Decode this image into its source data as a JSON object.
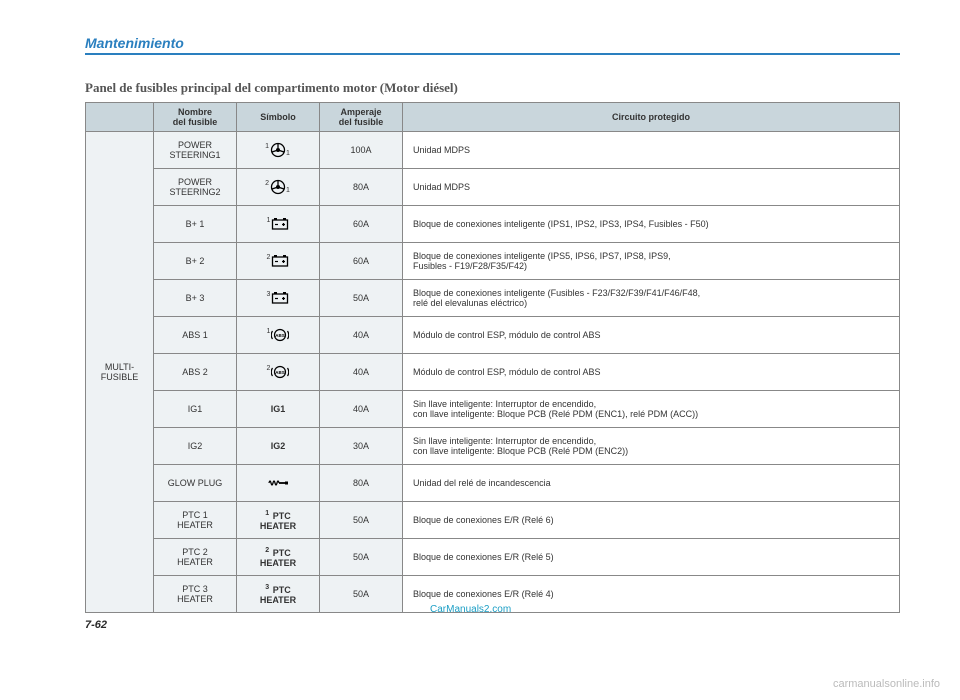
{
  "header": {
    "section": "Mantenimiento"
  },
  "title": "Panel de fusibles principal del compartimento motor (Motor diésel)",
  "table": {
    "headers": {
      "group": "",
      "name": "Nombre\ndel fusible",
      "symbol": "Símbolo",
      "amp": "Amperaje\ndel fusible",
      "desc": "Circuito protegido"
    },
    "group_label": "MULTI-\nFUSIBLE",
    "rows": [
      {
        "name": "POWER\nSTEERING1",
        "sym_type": "steer",
        "sup": "1",
        "sub": "1",
        "amp": "100A",
        "desc": "Unidad MDPS"
      },
      {
        "name": "POWER\nSTEERING2",
        "sym_type": "steer",
        "sup": "2",
        "sub": "1",
        "amp": "80A",
        "desc": "Unidad MDPS"
      },
      {
        "name": "B+ 1",
        "sym_type": "battery",
        "sup": "1",
        "amp": "60A",
        "desc": "Bloque de conexiones inteligente (IPS1, IPS2, IPS3, IPS4, Fusibles - F50)"
      },
      {
        "name": "B+ 2",
        "sym_type": "battery",
        "sup": "2",
        "amp": "60A",
        "desc": "Bloque de conexiones inteligente (IPS5, IPS6, IPS7, IPS8, IPS9,\nFusibles - F19/F28/F35/F42)"
      },
      {
        "name": "B+ 3",
        "sym_type": "battery",
        "sup": "3",
        "amp": "50A",
        "desc": "Bloque de conexiones inteligente (Fusibles - F23/F32/F39/F41/F46/F48,\nrelé del elevalunas eléctrico)"
      },
      {
        "name": "ABS 1",
        "sym_type": "abs",
        "sup": "1",
        "amp": "40A",
        "desc": "Módulo de control ESP, módulo de control ABS"
      },
      {
        "name": "ABS 2",
        "sym_type": "abs",
        "sup": "2",
        "amp": "40A",
        "desc": "Módulo de control ESP, módulo de control ABS"
      },
      {
        "name": "IG1",
        "sym_type": "text",
        "text": "IG1",
        "amp": "40A",
        "desc": "Sin llave inteligente: Interruptor de encendido,\ncon llave inteligente: Bloque PCB (Relé PDM (ENC1), relé PDM (ACC))"
      },
      {
        "name": "IG2",
        "sym_type": "text",
        "text": "IG2",
        "amp": "30A",
        "desc": "Sin llave inteligente: Interruptor de encendido,\ncon llave inteligente: Bloque PCB (Relé PDM (ENC2))"
      },
      {
        "name": "GLOW PLUG",
        "sym_type": "glow",
        "amp": "80A",
        "desc": "Unidad del relé de incandescencia"
      },
      {
        "name": "PTC 1\nHEATER",
        "sym_type": "ptc",
        "sup": "1",
        "amp": "50A",
        "desc": "Bloque de conexiones E/R (Relé 6)"
      },
      {
        "name": "PTC 2\nHEATER",
        "sym_type": "ptc",
        "sup": "2",
        "amp": "50A",
        "desc": "Bloque de conexiones E/R (Relé 5)"
      },
      {
        "name": "PTC 3\nHEATER",
        "sym_type": "ptc",
        "sup": "3",
        "amp": "50A",
        "desc": "Bloque de conexiones E/R (Relé 4)"
      }
    ]
  },
  "page_number": "7-62",
  "watermark": "CarManuals2.com",
  "footer": "carmanualsonline.info",
  "colors": {
    "accent": "#2a7fbf",
    "header_bg": "#c9d6dc",
    "cell_bg": "#eef2f4",
    "border": "#888888"
  }
}
